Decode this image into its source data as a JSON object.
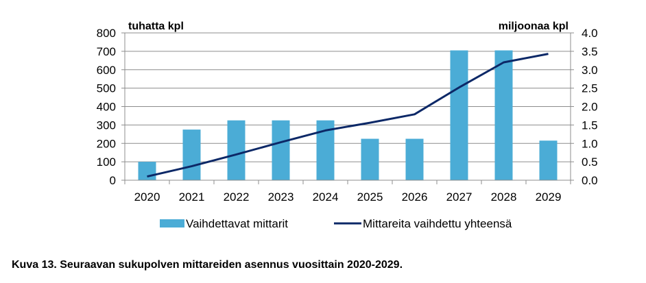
{
  "chart_data": {
    "type": "bar",
    "categories": [
      "2020",
      "2021",
      "2022",
      "2023",
      "2024",
      "2025",
      "2026",
      "2027",
      "2028",
      "2029"
    ],
    "series": [
      {
        "name": "Vaihdettavat mittarit",
        "type": "bar",
        "axis": "left",
        "color": "#4BACD6",
        "values": [
          100,
          275,
          325,
          325,
          325,
          225,
          225,
          705,
          705,
          215
        ]
      },
      {
        "name": "Mittareita vaihdettu yhteensä",
        "type": "line",
        "axis": "right",
        "color": "#0C2867",
        "values": [
          0.1,
          0.38,
          0.7,
          1.03,
          1.35,
          1.56,
          1.79,
          2.52,
          3.2,
          3.43
        ]
      }
    ],
    "y_left": {
      "label": "tuhatta kpl",
      "range": [
        0,
        800
      ],
      "ticks": [
        "0",
        "100",
        "200",
        "300",
        "400",
        "500",
        "600",
        "700",
        "800"
      ]
    },
    "y_right": {
      "label": "miljoonaa kpl",
      "range": [
        0,
        4
      ],
      "ticks": [
        "0.0",
        "0.5",
        "1.0",
        "1.5",
        "2.0",
        "2.5",
        "3.0",
        "3.5",
        "4.0"
      ]
    },
    "grid": "horizontal",
    "legend_position": "bottom"
  },
  "caption": "Kuva 13. Seuraavan sukupolven mittareiden asennus vuosittain 2020-2029."
}
